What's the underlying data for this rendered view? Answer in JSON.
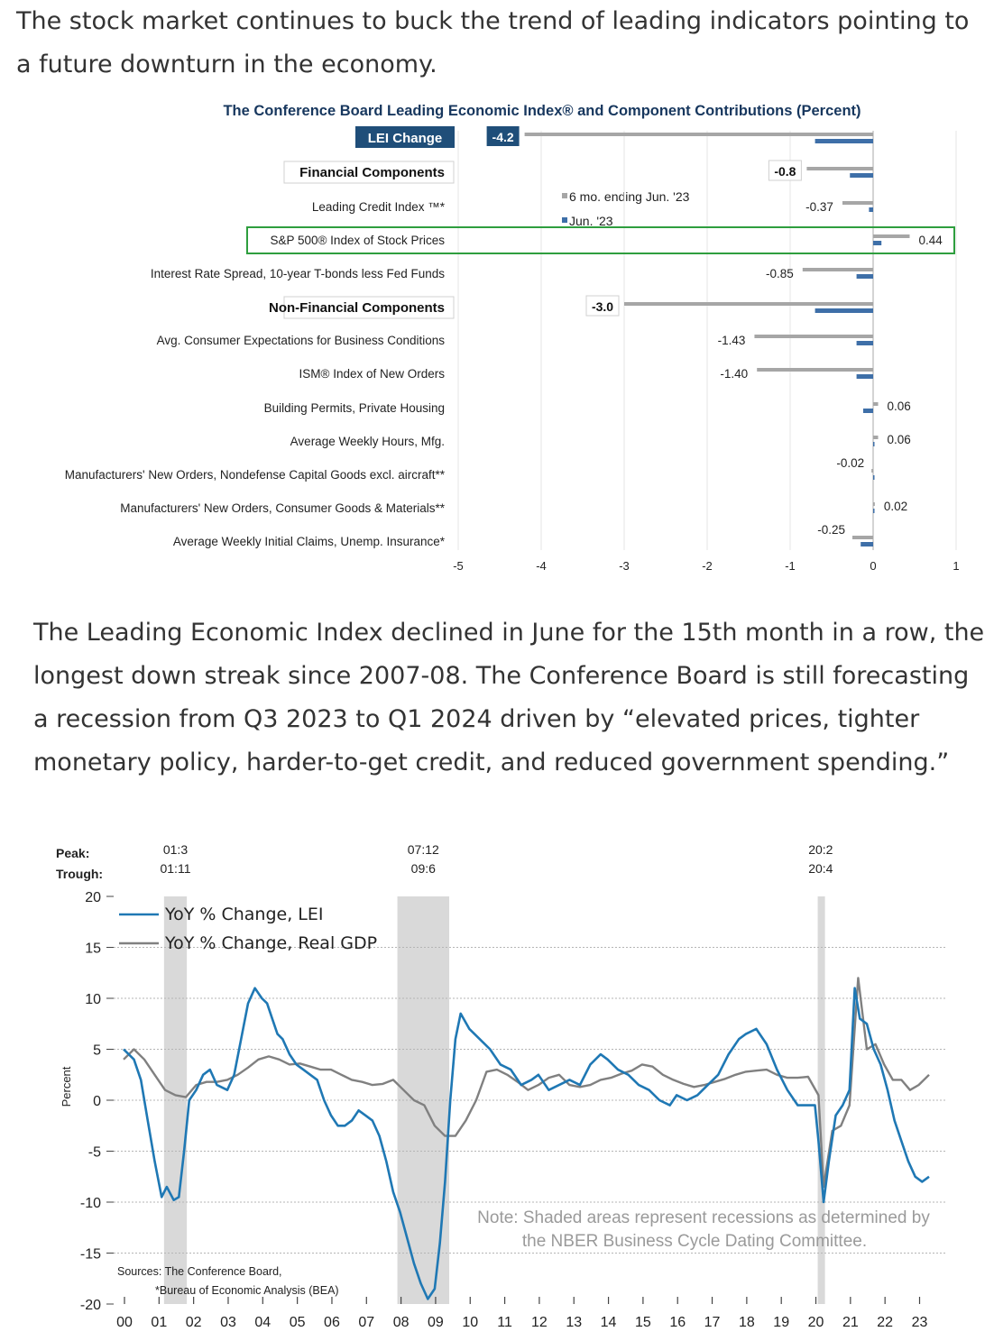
{
  "article": {
    "intro": "The stock market continues to buck the trend of leading indicators pointing to a future downturn in the economy.",
    "middle": "The Leading Economic Index declined in June for the 15th month in a row, the longest down streak since 2007-08. The Conference Board is still forecasting a recession from Q3 2023 to Q1 2024 driven by “elevated prices, tighter monetary policy, harder-to-get credit, and reduced government spending.”"
  },
  "colors": {
    "six_month": "#a6a6a6",
    "june": "#3e6fa8",
    "lei_line": "#1f78b4",
    "gdp_line": "#808080",
    "recession": "#d9d9d9",
    "highlight": "#2e9e3e",
    "title_blue": "#17375e"
  },
  "chart_data": [
    {
      "type": "bar",
      "orientation": "horizontal",
      "title": "The Conference Board Leading Economic Index® and Component Contributions (Percent)",
      "legend": [
        "6 mo. ending Jun. '23",
        "Jun. '23"
      ],
      "xlim": [
        -5,
        1
      ],
      "xticks": [
        "-5",
        "-4",
        "-3",
        "-2",
        "-1",
        "0",
        "1"
      ],
      "highlighted_category": "S&P 500® Index of Stock Prices",
      "categories": [
        {
          "label": "LEI Change",
          "kind": "total",
          "six_month": -4.2,
          "june": -0.7,
          "value_label": "-4.2"
        },
        {
          "label": "Financial Components",
          "kind": "group",
          "six_month": -0.8,
          "june": -0.28,
          "value_label": "-0.8"
        },
        {
          "label": "Leading Credit Index ™*",
          "kind": "item",
          "six_month": -0.37,
          "june": -0.05,
          "value_label": "-0.37"
        },
        {
          "label": "S&P 500® Index of Stock Prices",
          "kind": "item",
          "six_month": 0.44,
          "june": 0.1,
          "value_label": "0.44"
        },
        {
          "label": "Interest Rate Spread, 10-year T-bonds less Fed Funds",
          "kind": "item",
          "six_month": -0.85,
          "june": -0.2,
          "value_label": "-0.85"
        },
        {
          "label": "Non-Financial Components",
          "kind": "group",
          "six_month": -3.0,
          "june": -0.7,
          "value_label": "-3.0"
        },
        {
          "label": "Avg. Consumer Expectations for Business Conditions",
          "kind": "item",
          "six_month": -1.43,
          "june": -0.2,
          "value_label": "-1.43"
        },
        {
          "label": "ISM® Index of New Orders",
          "kind": "item",
          "six_month": -1.4,
          "june": -0.2,
          "value_label": "-1.40"
        },
        {
          "label": "Building Permits, Private Housing",
          "kind": "item",
          "six_month": 0.06,
          "june": -0.12,
          "value_label": "0.06"
        },
        {
          "label": "Average Weekly Hours, Mfg.",
          "kind": "item",
          "six_month": 0.06,
          "june": 0.0,
          "value_label": "0.06"
        },
        {
          "label": "Manufacturers' New Orders, Nondefense Capital Goods excl. aircraft**",
          "kind": "item",
          "six_month": -0.02,
          "june": 0.0,
          "value_label": "-0.02"
        },
        {
          "label": "Manufacturers' New Orders, Consumer Goods & Materials**",
          "kind": "item",
          "six_month": 0.02,
          "june": 0.0,
          "value_label": "0.02"
        },
        {
          "label": "Average Weekly Initial Claims, Unemp. Insurance*",
          "kind": "item",
          "six_month": -0.25,
          "june": -0.15,
          "value_label": "-0.25"
        }
      ]
    },
    {
      "type": "line",
      "ylabel": "Percent",
      "ylim": [
        -20,
        20
      ],
      "yticks": [
        "20",
        "15",
        "10",
        "5",
        "0",
        "-5",
        "-10",
        "-15",
        "-20"
      ],
      "xlim": [
        2000,
        2023.3
      ],
      "xticks": [
        "00",
        "01",
        "02",
        "03",
        "04",
        "05",
        "06",
        "07",
        "08",
        "09",
        "10",
        "11",
        "12",
        "13",
        "14",
        "15",
        "16",
        "17",
        "18",
        "19",
        "20",
        "21",
        "22",
        "23"
      ],
      "peak_label": "Peak:",
      "trough_label": "Trough:",
      "recessions": [
        {
          "peak": "01:3",
          "trough": "01:11",
          "start": 2001.17,
          "end": 2001.83
        },
        {
          "peak": "07:12",
          "trough": "09:6",
          "start": 2007.92,
          "end": 2009.42
        },
        {
          "peak": "20:2",
          "trough": "20:4",
          "start": 2020.08,
          "end": 2020.25
        }
      ],
      "series": [
        {
          "name": "YoY % Change, LEI",
          "x": [
            2000.0,
            2000.15,
            2000.3,
            2000.5,
            2000.7,
            2000.9,
            2001.1,
            2001.25,
            2001.45,
            2001.6,
            2001.75,
            2001.9,
            2002.1,
            2002.3,
            2002.5,
            2002.7,
            2003.0,
            2003.2,
            2003.4,
            2003.6,
            2003.8,
            2004.0,
            2004.15,
            2004.3,
            2004.45,
            2004.6,
            2004.8,
            2005.0,
            2005.2,
            2005.4,
            2005.6,
            2005.8,
            2006.0,
            2006.2,
            2006.4,
            2006.6,
            2006.8,
            2007.0,
            2007.2,
            2007.4,
            2007.6,
            2007.8,
            2008.0,
            2008.2,
            2008.4,
            2008.6,
            2008.8,
            2009.0,
            2009.15,
            2009.3,
            2009.45,
            2009.6,
            2009.75,
            2010.0,
            2010.3,
            2010.6,
            2010.9,
            2011.2,
            2011.5,
            2011.8,
            2012.0,
            2012.3,
            2012.6,
            2012.9,
            2013.2,
            2013.5,
            2013.8,
            2014.0,
            2014.3,
            2014.6,
            2014.9,
            2015.2,
            2015.5,
            2015.8,
            2016.0,
            2016.3,
            2016.6,
            2016.9,
            2017.2,
            2017.5,
            2017.8,
            2018.0,
            2018.3,
            2018.6,
            2018.9,
            2019.2,
            2019.5,
            2019.8,
            2020.0,
            2020.1,
            2020.25,
            2020.4,
            2020.6,
            2020.8,
            2021.0,
            2021.15,
            2021.3,
            2021.5,
            2021.7,
            2021.9,
            2022.1,
            2022.3,
            2022.5,
            2022.7,
            2022.9,
            2023.1,
            2023.3
          ],
          "values": [
            5.0,
            4.5,
            4.0,
            2.0,
            -2.0,
            -6.0,
            -9.5,
            -8.5,
            -9.8,
            -9.5,
            -5.0,
            0.0,
            1.0,
            2.5,
            3.0,
            1.5,
            1.0,
            2.5,
            6.0,
            9.5,
            11.0,
            10.0,
            9.5,
            8.0,
            6.5,
            6.0,
            4.5,
            3.5,
            3.0,
            2.5,
            2.0,
            0.0,
            -1.5,
            -2.5,
            -2.5,
            -2.0,
            -1.0,
            -1.5,
            -2.0,
            -3.5,
            -6.0,
            -9.0,
            -11.0,
            -13.5,
            -16.0,
            -18.0,
            -19.5,
            -18.5,
            -14.0,
            -8.0,
            0.0,
            6.0,
            8.5,
            7.0,
            6.0,
            5.0,
            3.5,
            3.0,
            1.5,
            2.0,
            2.5,
            1.0,
            1.5,
            2.0,
            1.5,
            3.5,
            4.5,
            4.0,
            3.0,
            2.5,
            1.5,
            1.0,
            0.0,
            -0.5,
            0.5,
            0.0,
            0.5,
            1.5,
            2.5,
            4.5,
            6.0,
            6.5,
            7.0,
            5.5,
            3.0,
            1.0,
            -0.5,
            -0.5,
            -0.5,
            -4.0,
            -10.0,
            -6.0,
            -1.5,
            -0.5,
            1.0,
            11.0,
            8.0,
            7.5,
            5.0,
            3.5,
            1.0,
            -2.0,
            -4.0,
            -6.0,
            -7.5,
            -8.0,
            -7.5
          ]
        },
        {
          "name": "YoY % Change, Real GDP",
          "x": [
            2000.0,
            2000.3,
            2000.6,
            2000.9,
            2001.2,
            2001.5,
            2001.8,
            2002.1,
            2002.4,
            2002.7,
            2003.0,
            2003.3,
            2003.6,
            2003.9,
            2004.2,
            2004.5,
            2004.8,
            2005.1,
            2005.4,
            2005.7,
            2006.0,
            2006.3,
            2006.6,
            2006.9,
            2007.2,
            2007.5,
            2007.8,
            2008.1,
            2008.4,
            2008.7,
            2009.0,
            2009.3,
            2009.6,
            2009.9,
            2010.2,
            2010.5,
            2010.8,
            2011.1,
            2011.4,
            2011.7,
            2012.0,
            2012.3,
            2012.6,
            2012.9,
            2013.2,
            2013.5,
            2013.8,
            2014.1,
            2014.4,
            2014.7,
            2015.0,
            2015.3,
            2015.6,
            2015.9,
            2016.2,
            2016.5,
            2016.8,
            2017.1,
            2017.4,
            2017.7,
            2018.0,
            2018.3,
            2018.6,
            2018.9,
            2019.2,
            2019.5,
            2019.8,
            2020.1,
            2020.25,
            2020.5,
            2020.75,
            2021.0,
            2021.25,
            2021.5,
            2021.75,
            2022.0,
            2022.25,
            2022.5,
            2022.75,
            2023.0,
            2023.3
          ],
          "values": [
            4.0,
            5.0,
            4.0,
            2.5,
            1.0,
            0.5,
            0.3,
            1.5,
            1.8,
            1.8,
            2.0,
            2.5,
            3.2,
            4.0,
            4.3,
            4.0,
            3.5,
            3.6,
            3.3,
            3.0,
            3.0,
            2.5,
            2.0,
            1.8,
            1.5,
            1.6,
            2.0,
            1.0,
            0.0,
            -0.5,
            -2.5,
            -3.5,
            -3.5,
            -2.0,
            0.0,
            2.8,
            3.0,
            2.5,
            1.8,
            1.0,
            1.5,
            2.2,
            2.5,
            1.5,
            1.3,
            1.5,
            2.0,
            2.2,
            2.6,
            2.9,
            3.5,
            3.3,
            2.5,
            2.0,
            1.6,
            1.3,
            1.5,
            1.8,
            2.1,
            2.5,
            2.8,
            2.9,
            3.0,
            2.5,
            2.2,
            2.2,
            2.3,
            0.5,
            -8.5,
            -3.0,
            -2.5,
            -0.5,
            12.0,
            5.0,
            5.5,
            3.5,
            2.0,
            2.0,
            1.0,
            1.5,
            2.5
          ]
        }
      ],
      "note": [
        "Note: Shaded areas represent recessions as determined by",
        "the NBER Business Cycle Dating Committee."
      ],
      "sources": [
        "Sources: The Conference Board,",
        "*Bureau of Economic Analysis (BEA)"
      ]
    }
  ]
}
